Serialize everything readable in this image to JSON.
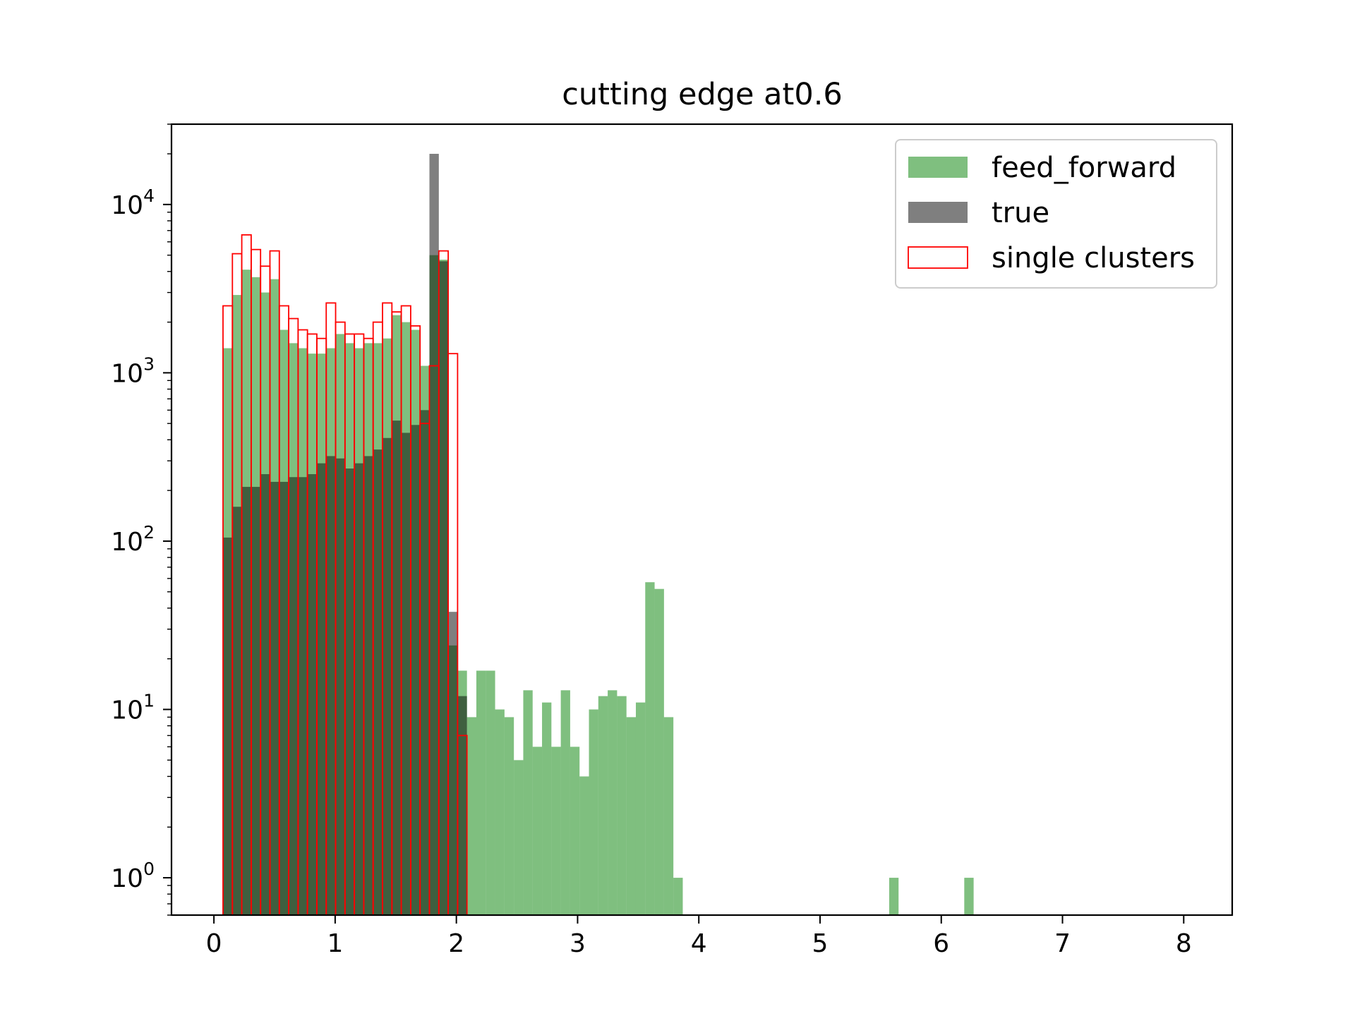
{
  "chart_data": {
    "type": "bar",
    "subtype": "histogram",
    "title": "cutting edge at0.6",
    "xlabel": "",
    "ylabel": "",
    "xlim": [
      -0.35,
      8.4
    ],
    "ylim": [
      0.6,
      30000
    ],
    "yscale": "log",
    "x_ticks": [
      0,
      1,
      2,
      3,
      4,
      5,
      6,
      7,
      8
    ],
    "y_ticks": [
      {
        "value": 1,
        "base": "10",
        "exp": "0"
      },
      {
        "value": 10,
        "base": "10",
        "exp": "1"
      },
      {
        "value": 100,
        "base": "10",
        "exp": "2"
      },
      {
        "value": 1000,
        "base": "10",
        "exp": "3"
      },
      {
        "value": 10000,
        "base": "10",
        "exp": "4"
      }
    ],
    "grid": false,
    "legend_position": "top-right",
    "bin_start": 0.075,
    "bin_width": 0.0774,
    "series": [
      {
        "name": "feed_forward",
        "style": "filled",
        "color": "#008000",
        "alpha": 0.5,
        "values": [
          1400,
          2900,
          4100,
          3700,
          3000,
          3600,
          1800,
          1500,
          1400,
          1300,
          1300,
          1400,
          1700,
          1500,
          1400,
          1500,
          1500,
          1600,
          2200,
          2000,
          1800,
          1100,
          5000,
          4700,
          24,
          17,
          9,
          17,
          17,
          10,
          9,
          5,
          13,
          6,
          11,
          6,
          13,
          6,
          4,
          10,
          12,
          13,
          12,
          9,
          11,
          57,
          52,
          9,
          1,
          0,
          0,
          0,
          0,
          0,
          0,
          0,
          0,
          0,
          0,
          0,
          0,
          0,
          0,
          0,
          0,
          0,
          0,
          0,
          0,
          0,
          0,
          1,
          0,
          0,
          0,
          0,
          0,
          0,
          0,
          1
        ]
      },
      {
        "name": "true",
        "style": "filled",
        "color": "#000000",
        "alpha": 0.5,
        "values": [
          105,
          160,
          210,
          210,
          250,
          225,
          225,
          240,
          240,
          250,
          290,
          320,
          310,
          270,
          290,
          320,
          350,
          410,
          520,
          440,
          490,
          600,
          20000,
          4600,
          38,
          12,
          0,
          0,
          0,
          0,
          0,
          0,
          0,
          0,
          0,
          0,
          0,
          0,
          0,
          0,
          0,
          0,
          0,
          0,
          0,
          0,
          0,
          0,
          0,
          0,
          0,
          0,
          0,
          0,
          0,
          0,
          0,
          0,
          0,
          0,
          0,
          0,
          0,
          0,
          0,
          0,
          0,
          0,
          0,
          0,
          0,
          0,
          0,
          0,
          0,
          0,
          0,
          0,
          0,
          0
        ]
      },
      {
        "name": "single clusters",
        "style": "step",
        "color": "#ff0000",
        "values": [
          2500,
          5100,
          6600,
          5400,
          4300,
          5300,
          2500,
          2100,
          1800,
          1700,
          1600,
          2600,
          2000,
          1700,
          1700,
          1600,
          2000,
          2600,
          2300,
          2500,
          1900,
          500,
          1100,
          5300,
          1300,
          7,
          0,
          0,
          0,
          0,
          0,
          0,
          0,
          0,
          0,
          0,
          0,
          0,
          0,
          0,
          0,
          0,
          0,
          0,
          0,
          0,
          0,
          0,
          0,
          0,
          0,
          0,
          0,
          0,
          0,
          0,
          0,
          0,
          0,
          0,
          0,
          0,
          0,
          0,
          0,
          0,
          0,
          0,
          0,
          0,
          0,
          0,
          0,
          0,
          0,
          0,
          0,
          0,
          0,
          0
        ]
      }
    ]
  }
}
